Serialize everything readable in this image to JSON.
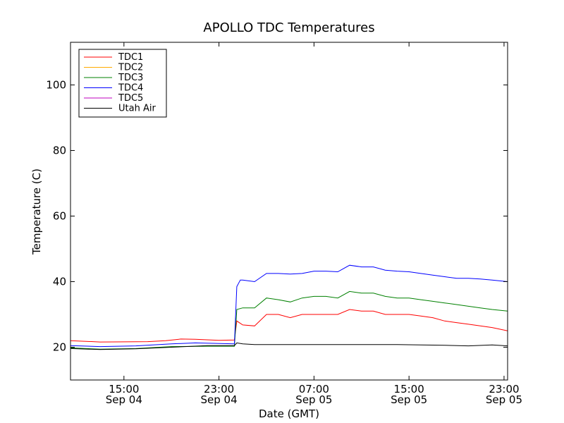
{
  "chart_data": {
    "type": "line",
    "title": "APOLLO TDC Temperatures",
    "xlabel": "Date (GMT)",
    "ylabel": "Temperature (C)",
    "xlim_hours": [
      10.5,
      47.3
    ],
    "ylim": [
      10,
      113
    ],
    "yticks": [
      20,
      40,
      60,
      80,
      100
    ],
    "xticks": [
      {
        "hour": 15,
        "time": "15:00",
        "date": "Sep 04"
      },
      {
        "hour": 23,
        "time": "23:00",
        "date": "Sep 04"
      },
      {
        "hour": 31,
        "time": "07:00",
        "date": "Sep 05"
      },
      {
        "hour": 39,
        "time": "15:00",
        "date": "Sep 05"
      },
      {
        "hour": 47,
        "time": "23:00",
        "date": "Sep 05"
      }
    ],
    "x_axis_note": "hours since Sep 04 00:00 GMT",
    "legend_position": "top-left",
    "grid": false,
    "series": [
      {
        "name": "TDC1",
        "color": "#ff0000",
        "points": [
          [
            10.5,
            22.0
          ],
          [
            13,
            21.6
          ],
          [
            17,
            21.7
          ],
          [
            18.5,
            22.0
          ],
          [
            19.8,
            22.5
          ],
          [
            21,
            22.4
          ],
          [
            23,
            22.1
          ],
          [
            24.3,
            22.2
          ],
          [
            24.5,
            28.0
          ],
          [
            25,
            26.8
          ],
          [
            26,
            26.5
          ],
          [
            27,
            30
          ],
          [
            28,
            30
          ],
          [
            29,
            29
          ],
          [
            30,
            30
          ],
          [
            31,
            30
          ],
          [
            32,
            30
          ],
          [
            33,
            30
          ],
          [
            34,
            31.5
          ],
          [
            35,
            31
          ],
          [
            36,
            31
          ],
          [
            37,
            30
          ],
          [
            38,
            30
          ],
          [
            39,
            30
          ],
          [
            40,
            29.5
          ],
          [
            41,
            29
          ],
          [
            42,
            28
          ],
          [
            43,
            27.5
          ],
          [
            44,
            27
          ],
          [
            45,
            26.5
          ],
          [
            46,
            26
          ],
          [
            47.3,
            25
          ]
        ]
      },
      {
        "name": "TDC2",
        "color": "#ffaa00",
        "points": []
      },
      {
        "name": "TDC3",
        "color": "#008000",
        "points": [
          [
            10.5,
            19.8
          ],
          [
            13,
            19.4
          ],
          [
            16,
            19.6
          ],
          [
            19,
            20.2
          ],
          [
            22,
            20.3
          ],
          [
            24.3,
            20.3
          ],
          [
            24.5,
            31.5
          ],
          [
            25,
            32.0
          ],
          [
            26,
            32.0
          ],
          [
            27,
            35
          ],
          [
            28,
            34.5
          ],
          [
            29,
            33.8
          ],
          [
            30,
            35
          ],
          [
            31,
            35.5
          ],
          [
            32,
            35.5
          ],
          [
            33,
            35
          ],
          [
            34,
            37
          ],
          [
            35,
            36.5
          ],
          [
            36,
            36.5
          ],
          [
            37,
            35.5
          ],
          [
            38,
            35
          ],
          [
            39,
            35
          ],
          [
            40,
            34.5
          ],
          [
            41,
            34
          ],
          [
            42,
            33.5
          ],
          [
            43,
            33
          ],
          [
            44,
            32.5
          ],
          [
            45,
            32
          ],
          [
            46,
            31.5
          ],
          [
            47.3,
            31
          ]
        ]
      },
      {
        "name": "TDC4",
        "color": "#0000ff",
        "points": [
          [
            10.5,
            20.5
          ],
          [
            13,
            20.2
          ],
          [
            16,
            20.4
          ],
          [
            19,
            21.0
          ],
          [
            21,
            21.3
          ],
          [
            24.3,
            21.0
          ],
          [
            24.5,
            38.5
          ],
          [
            24.8,
            40.5
          ],
          [
            25,
            40.5
          ],
          [
            26,
            40.0
          ],
          [
            27,
            42.5
          ],
          [
            28,
            42.5
          ],
          [
            29,
            42.3
          ],
          [
            30,
            42.5
          ],
          [
            31,
            43.2
          ],
          [
            32,
            43.2
          ],
          [
            33,
            43.0
          ],
          [
            34,
            45.0
          ],
          [
            35,
            44.5
          ],
          [
            36,
            44.5
          ],
          [
            37,
            43.5
          ],
          [
            38,
            43.2
          ],
          [
            39,
            43.0
          ],
          [
            40,
            42.5
          ],
          [
            41,
            42.0
          ],
          [
            42,
            41.5
          ],
          [
            43,
            41.0
          ],
          [
            44,
            41.0
          ],
          [
            45,
            40.8
          ],
          [
            46,
            40.5
          ],
          [
            47.3,
            40
          ]
        ]
      },
      {
        "name": "TDC5",
        "color": "#bf00bf",
        "points": []
      },
      {
        "name": "Utah Air",
        "color": "#000000",
        "points": [
          [
            10.5,
            19.6
          ],
          [
            13,
            19.3
          ],
          [
            16,
            19.5
          ],
          [
            19,
            20.0
          ],
          [
            22,
            20.5
          ],
          [
            24.3,
            20.5
          ],
          [
            24.5,
            21.3
          ],
          [
            25,
            21.0
          ],
          [
            26,
            20.8
          ],
          [
            30,
            20.8
          ],
          [
            34,
            20.8
          ],
          [
            38,
            20.8
          ],
          [
            42,
            20.6
          ],
          [
            44,
            20.4
          ],
          [
            46,
            20.7
          ],
          [
            47.3,
            20.4
          ]
        ]
      }
    ]
  }
}
